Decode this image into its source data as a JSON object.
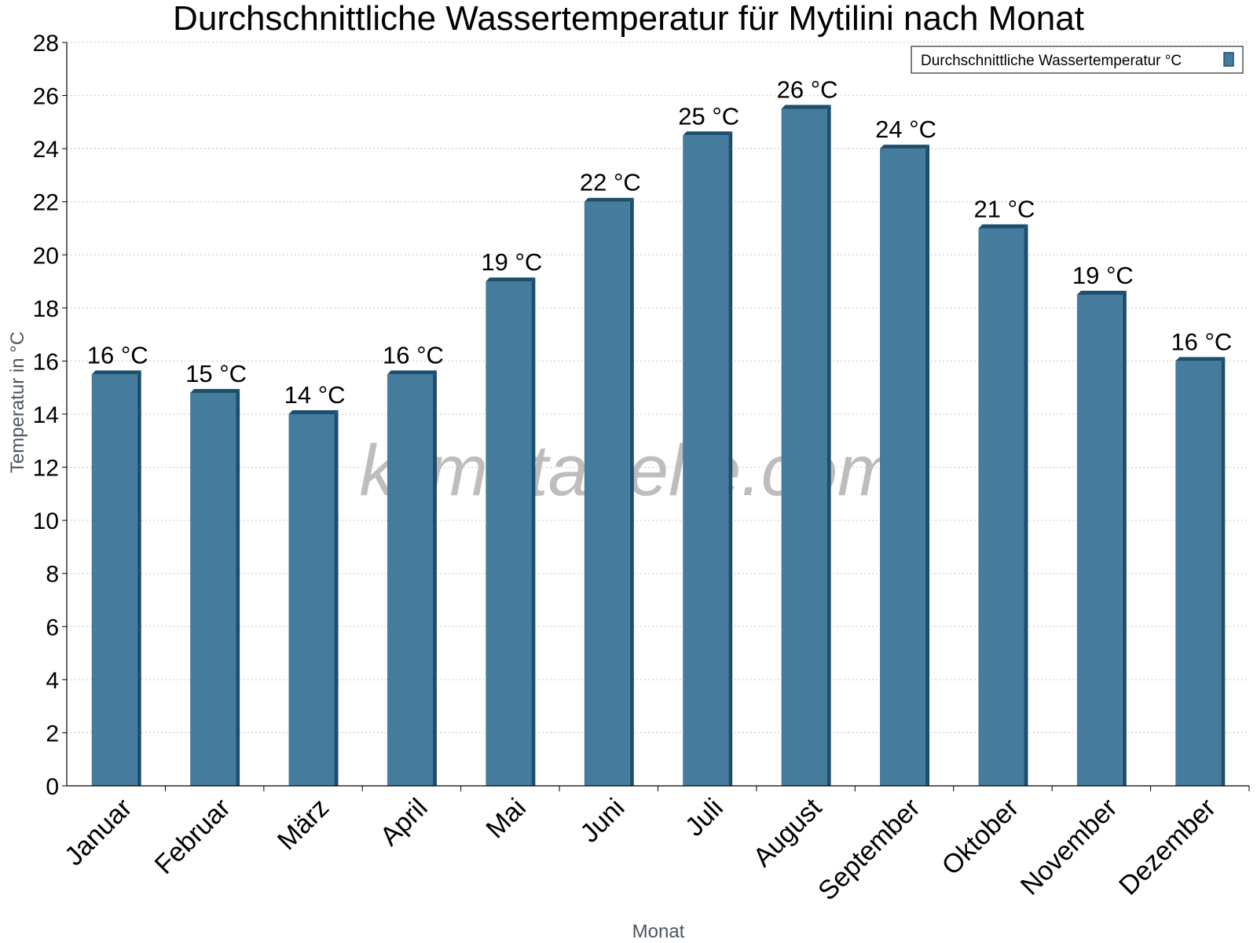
{
  "chart_data": {
    "type": "bar",
    "title": "Durchschnittliche Wassertemperatur für Mytilini nach Monat",
    "xlabel": "Monat",
    "ylabel": "Temperatur in °C",
    "ylim": [
      0,
      28
    ],
    "yticks": [
      0,
      2,
      4,
      6,
      8,
      10,
      12,
      14,
      16,
      18,
      20,
      22,
      24,
      26,
      28
    ],
    "grid": true,
    "legend_position": "top-right",
    "categories": [
      "Januar",
      "Februar",
      "März",
      "April",
      "Mai",
      "Juni",
      "Juli",
      "August",
      "September",
      "Oktober",
      "November",
      "Dezember"
    ],
    "series": [
      {
        "name": "Durchschnittliche Wassertemperatur °C",
        "color": "#457b9d",
        "values": [
          15.5,
          14.8,
          14.0,
          15.5,
          19.0,
          22.0,
          24.5,
          25.5,
          24.0,
          21.0,
          18.5,
          16.0
        ],
        "labels": [
          "16 °C",
          "15 °C",
          "14 °C",
          "16 °C",
          "19 °C",
          "22 °C",
          "25 °C",
          "26 °C",
          "24 °C",
          "21 °C",
          "19 °C",
          "16 °C"
        ]
      }
    ]
  },
  "watermark": "klimatabelle.com",
  "colors": {
    "bar_face": "#457b9d",
    "bar_side": "#1d4e6e",
    "grid": "#c8c8c8",
    "axis": "#000000"
  }
}
